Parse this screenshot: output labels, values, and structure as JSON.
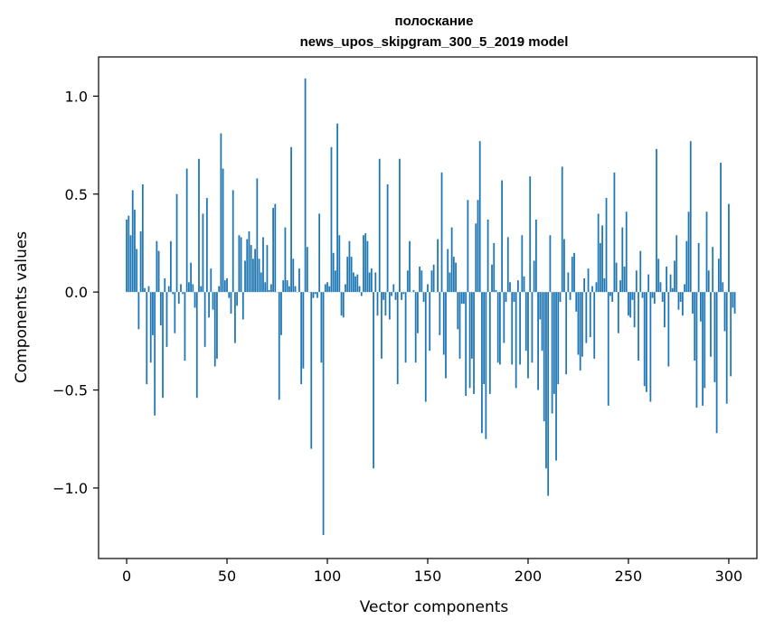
{
  "chart_data": {
    "type": "bar",
    "title": [
      "полоскание",
      "news_upos_skipgram_300_5_2019 model"
    ],
    "xlabel": "Vector components",
    "ylabel": "Components values",
    "xlim": [
      -14,
      314
    ],
    "ylim": [
      -1.36,
      1.2
    ],
    "xticks": [
      0,
      50,
      100,
      150,
      200,
      250,
      300
    ],
    "yticks": [
      -1.0,
      -0.5,
      0.0,
      0.5,
      1.0
    ],
    "ytick_labels": [
      "−1.0",
      "−0.5",
      "0.0",
      "0.5",
      "1.0"
    ],
    "grid": false,
    "color": "#1f77b4",
    "values": [
      0.37,
      0.39,
      0.29,
      0.52,
      0.42,
      0.22,
      -0.19,
      0.31,
      0.55,
      0.02,
      -0.47,
      0.03,
      -0.36,
      -0.22,
      -0.63,
      0.26,
      0.21,
      -0.17,
      -0.54,
      0.07,
      -0.28,
      0.03,
      0.26,
      -0.01,
      -0.21,
      0.5,
      -0.06,
      0.04,
      -0.01,
      -0.35,
      0.63,
      0.05,
      0.15,
      0.04,
      -0.08,
      -0.54,
      0.68,
      0.03,
      0.4,
      -0.28,
      0.48,
      -0.13,
      0.12,
      -0.09,
      -0.38,
      -0.34,
      0.03,
      0.81,
      0.63,
      0.06,
      0.07,
      -0.03,
      -0.11,
      0.52,
      -0.26,
      -0.07,
      0.29,
      0.28,
      -0.14,
      0.16,
      0.27,
      0.31,
      0.24,
      0.17,
      0.22,
      0.58,
      0.17,
      0.1,
      0.28,
      0.05,
      0.24,
      0.01,
      0.04,
      0.43,
      0.45,
      0.0,
      -0.55,
      -0.22,
      0.06,
      0.33,
      0.06,
      0.03,
      0.74,
      0.17,
      0.03,
      0.0,
      0.12,
      -0.47,
      -0.39,
      1.09,
      0.23,
      0.0,
      -0.8,
      -0.03,
      -0.01,
      -0.03,
      0.4,
      -0.36,
      -1.24,
      0.04,
      0.05,
      0.03,
      0.74,
      0.2,
      0.11,
      0.86,
      0.29,
      -0.12,
      -0.13,
      0.04,
      0.18,
      0.26,
      0.18,
      0.1,
      0.08,
      0.09,
      0.03,
      -0.02,
      0.29,
      0.3,
      0.26,
      0.1,
      0.12,
      -0.9,
      0.1,
      -0.12,
      0.68,
      -0.34,
      -0.04,
      -0.12,
      0.55,
      -0.14,
      -0.02,
      0.04,
      -0.04,
      -0.47,
      0.68,
      -0.04,
      -0.01,
      -0.36,
      0.11,
      0.26,
      0.0,
      0.01,
      -0.36,
      -0.21,
      0.13,
      0.11,
      -0.05,
      -0.56,
      0.04,
      -0.3,
      0.11,
      0.14,
      0.0,
      0.27,
      -0.22,
      0.61,
      -0.32,
      -0.44,
      0.22,
      0.1,
      0.33,
      0.18,
      0.15,
      -0.19,
      -0.34,
      -0.06,
      -0.06,
      -0.53,
      0.47,
      -0.49,
      -0.34,
      -0.52,
      0.35,
      0.47,
      0.77,
      -0.72,
      -0.47,
      -0.75,
      0.37,
      -0.52,
      0.14,
      0.25,
      0.01,
      -0.36,
      -0.37,
      0.57,
      -0.26,
      -0.05,
      0.28,
      0.05,
      -0.37,
      -0.05,
      -0.49,
      0.06,
      -0.37,
      0.29,
      0.08,
      -0.3,
      -0.44,
      0.59,
      -0.36,
      0.16,
      0.37,
      -0.5,
      -0.14,
      -0.3,
      -0.66,
      -0.9,
      -1.04,
      0.29,
      -0.62,
      -0.52,
      -0.86,
      -0.47,
      -0.05,
      0.64,
      0.27,
      -0.42,
      0.1,
      -0.04,
      0.18,
      0.2,
      -0.1,
      -0.32,
      -0.4,
      -0.33,
      0.07,
      -0.26,
      0.12,
      -0.23,
      0.03,
      -0.34,
      0.05,
      0.4,
      0.25,
      0.34,
      0.07,
      0.48,
      -0.58,
      -0.02,
      -0.05,
      0.61,
      0.15,
      -0.21,
      0.06,
      0.33,
      0.13,
      0.41,
      -0.12,
      -0.13,
      -0.04,
      -0.18,
      0.11,
      -0.35,
      0.21,
      -0.03,
      -0.48,
      -0.51,
      0.09,
      -0.56,
      -0.03,
      -0.06,
      0.73,
      0.17,
      0.05,
      -0.05,
      -0.18,
      0.13,
      -0.38,
      0.09,
      0.02,
      0.16,
      0.29,
      -0.09,
      -0.05,
      -0.12,
      0.04,
      0.26,
      0.41,
      0.77,
      -0.11,
      -0.35,
      -0.59,
      0.25,
      -0.15,
      -0.58,
      -0.49,
      0.41,
      0.11,
      -0.33,
      0.23,
      -0.46,
      -0.72,
      0.17,
      0.66,
      0.05,
      -0.2,
      -0.57,
      0.45,
      -0.43,
      -0.08,
      -0.11
    ]
  }
}
